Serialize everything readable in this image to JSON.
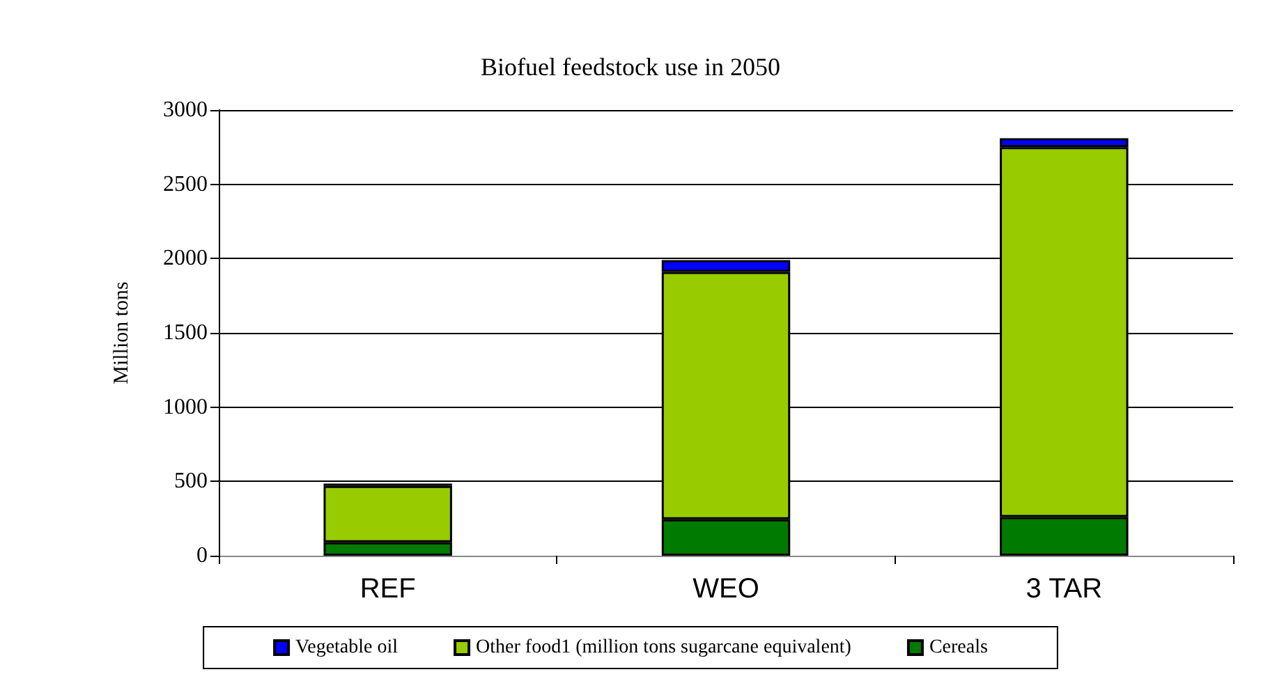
{
  "chart_data": {
    "type": "bar",
    "title": "Biofuel feedstock use in 2050",
    "ylabel": "Million tons",
    "categories": [
      "REF",
      "WEO",
      "3 TAR"
    ],
    "stacked": true,
    "series": [
      {
        "name": "Cereals",
        "color": "#007a00",
        "values": [
          90,
          245,
          260
        ]
      },
      {
        "name": "Other food1 (million tons sugarcane equivalent)",
        "color": "#99cc00",
        "values": [
          380,
          1665,
          2490
        ]
      },
      {
        "name": "Vegetable oil",
        "color": "#0000ff",
        "values": [
          15,
          80,
          60
        ]
      }
    ],
    "ylim": [
      0,
      3000
    ],
    "yticks": [
      0,
      500,
      1000,
      1500,
      2000,
      2500,
      3000
    ],
    "grid": "y",
    "legend": "bottom"
  }
}
